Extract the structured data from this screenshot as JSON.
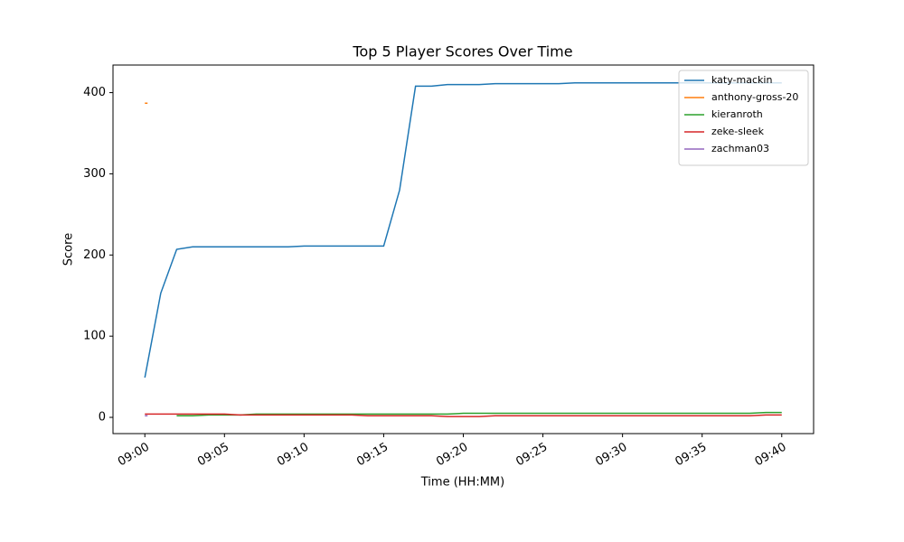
{
  "chart_data": {
    "type": "line",
    "title": "Top 5 Player Scores Over Time",
    "x_label": "Time (HH:MM)",
    "y_label": "Score",
    "x": [
      "09:00",
      "09:01",
      "09:02",
      "09:03",
      "09:04",
      "09:05",
      "09:06",
      "09:07",
      "09:08",
      "09:09",
      "09:10",
      "09:11",
      "09:12",
      "09:13",
      "09:14",
      "09:15",
      "09:16",
      "09:17",
      "09:18",
      "09:19",
      "09:20",
      "09:21",
      "09:22",
      "09:23",
      "09:24",
      "09:25",
      "09:26",
      "09:27",
      "09:28",
      "09:29",
      "09:30",
      "09:31",
      "09:32",
      "09:33",
      "09:34",
      "09:35",
      "09:36",
      "09:37",
      "09:38",
      "09:39",
      "09:40"
    ],
    "series": [
      {
        "name": "katy-mackin",
        "color": "#1f77b4",
        "values": [
          49,
          153,
          207,
          210,
          210,
          210,
          210,
          210,
          210,
          210,
          211,
          211,
          211,
          211,
          211,
          211,
          280,
          408,
          408,
          410,
          410,
          410,
          411,
          411,
          411,
          411,
          411,
          412,
          412,
          412,
          412,
          412,
          412,
          412,
          412,
          412,
          412,
          412,
          412,
          412,
          412
        ]
      },
      {
        "name": "anthony-gross-20",
        "color": "#ff7f0e",
        "values": [
          387,
          null,
          null,
          null,
          null,
          null,
          null,
          null,
          null,
          null,
          null,
          null,
          null,
          null,
          null,
          null,
          null,
          null,
          null,
          null,
          null,
          null,
          null,
          null,
          null,
          null,
          null,
          null,
          null,
          null,
          null,
          null,
          null,
          null,
          null,
          null,
          null,
          null,
          null,
          null,
          null
        ]
      },
      {
        "name": "kieranroth",
        "color": "#2ca02c",
        "values": [
          null,
          null,
          2,
          2,
          3,
          3,
          3,
          4,
          4,
          4,
          4,
          4,
          4,
          4,
          4,
          4,
          4,
          4,
          4,
          4,
          5,
          5,
          5,
          5,
          5,
          5,
          5,
          5,
          5,
          5,
          5,
          5,
          5,
          5,
          5,
          5,
          5,
          5,
          5,
          6,
          6
        ]
      },
      {
        "name": "zeke-sleek",
        "color": "#d62728",
        "values": [
          4,
          4,
          4,
          4,
          4,
          4,
          3,
          3,
          3,
          3,
          3,
          3,
          3,
          3,
          2,
          2,
          2,
          2,
          2,
          1,
          1,
          1,
          2,
          2,
          2,
          2,
          2,
          2,
          2,
          2,
          2,
          2,
          2,
          2,
          2,
          2,
          2,
          2,
          2,
          3,
          3
        ]
      },
      {
        "name": "zachman03",
        "color": "#9467bd",
        "values": [
          2,
          null,
          null,
          null,
          null,
          null,
          null,
          null,
          null,
          null,
          null,
          null,
          null,
          null,
          null,
          null,
          null,
          null,
          null,
          null,
          null,
          null,
          null,
          null,
          null,
          null,
          null,
          null,
          null,
          null,
          null,
          null,
          null,
          null,
          null,
          null,
          null,
          null,
          null,
          null,
          null
        ]
      }
    ],
    "xlim": [
      "08:58",
      "09:42"
    ],
    "xticks": [
      "09:00",
      "09:05",
      "09:10",
      "09:15",
      "09:20",
      "09:25",
      "09:30",
      "09:35",
      "09:40"
    ],
    "ylim": [
      -20,
      434
    ],
    "yticks": [
      0,
      100,
      200,
      300,
      400
    ],
    "legend": "upper right"
  }
}
